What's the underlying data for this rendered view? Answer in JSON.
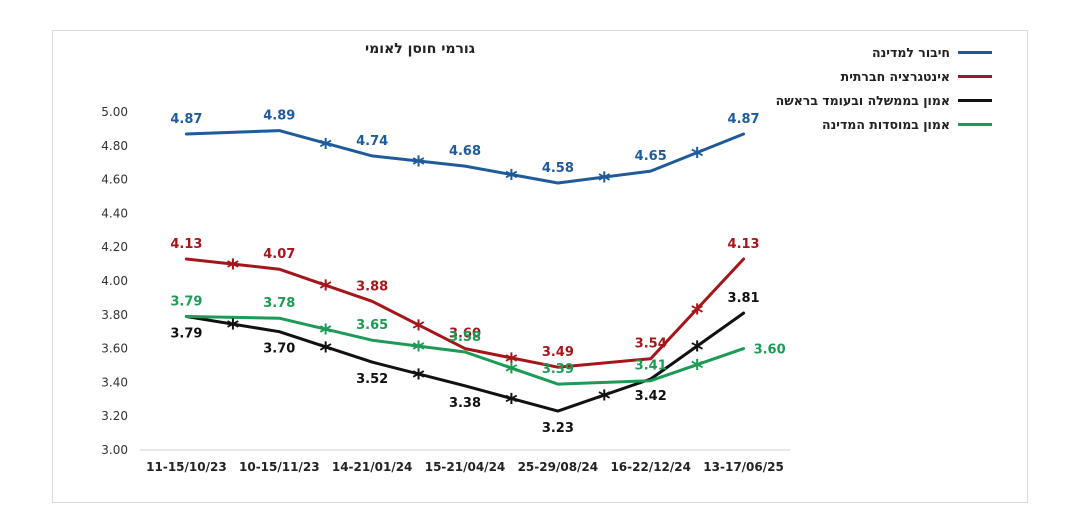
{
  "chart_data": {
    "type": "line",
    "title": "גורמי חוסן לאומי",
    "categories": [
      "11-15/10/23",
      "10-15/11/23",
      "14-21/01/24",
      "15-21/04/24",
      "25-29/08/24",
      "16-22/12/24",
      "13-17/06/25"
    ],
    "ylim": [
      3.0,
      5.0
    ],
    "yticks": [
      "3.00",
      "3.20",
      "3.40",
      "3.60",
      "3.80",
      "4.00",
      "4.20",
      "4.40",
      "4.60",
      "4.80",
      "5.00"
    ],
    "legend_position": "top-right",
    "series": [
      {
        "name": "חיבור למדינה",
        "color": "#1f5b9a",
        "values": [
          4.87,
          4.89,
          4.74,
          4.68,
          4.58,
          4.65,
          4.87
        ],
        "labels": [
          "4.87",
          "4.89",
          "4.74",
          "4.68",
          "4.58",
          "4.65",
          "4.87"
        ],
        "label_pos": [
          "above",
          "above",
          "above",
          "above",
          "above",
          "above",
          "above"
        ],
        "stars_between": [
          1,
          2,
          3,
          4,
          5
        ]
      },
      {
        "name": "אינטגרציה חברתית",
        "color": "#a3171b",
        "values": [
          4.13,
          4.07,
          3.88,
          3.6,
          3.49,
          3.54,
          4.13
        ],
        "labels": [
          "4.13",
          "4.07",
          "3.88",
          "3.60",
          "3.49",
          "3.54",
          "4.13"
        ],
        "label_pos": [
          "above",
          "above",
          "above",
          "above",
          "above",
          "above",
          "above"
        ],
        "stars_between": [
          0,
          1,
          2,
          3,
          5
        ]
      },
      {
        "name": "אמון בממשלה ובעומד בראשה",
        "color": "#111111",
        "values": [
          3.79,
          3.7,
          3.52,
          3.38,
          3.23,
          3.42,
          3.81
        ],
        "labels": [
          "3.79",
          "3.70",
          "3.52",
          "3.38",
          "3.23",
          "3.42",
          "3.81"
        ],
        "label_pos": [
          "below",
          "below",
          "below",
          "below",
          "below",
          "below",
          "above"
        ],
        "stars_between": [
          0,
          1,
          2,
          3,
          4,
          5
        ]
      },
      {
        "name": "אמון במוסדות המדינה",
        "color": "#1d9a55",
        "values": [
          3.79,
          3.78,
          3.65,
          3.58,
          3.39,
          3.41,
          3.6
        ],
        "labels": [
          "3.79",
          "3.78",
          "3.65",
          "3.58",
          "3.39",
          "3.41",
          "3.60"
        ],
        "label_pos": [
          "above",
          "above",
          "above",
          "above",
          "above",
          "above",
          "right"
        ],
        "stars_between": [
          1,
          2,
          3,
          5
        ]
      }
    ]
  }
}
